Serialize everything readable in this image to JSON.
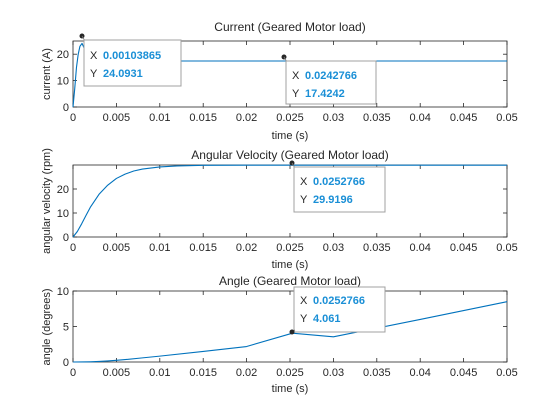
{
  "chart_data": [
    {
      "type": "line",
      "title": "Current (Geared Motor load)",
      "xlabel": "time (s)",
      "ylabel": "current (A)",
      "xlim": [
        0,
        0.05
      ],
      "ylim": [
        0,
        25
      ],
      "xticks": [
        "0",
        "0.005",
        "0.01",
        "0.015",
        "0.02",
        "0.025",
        "0.03",
        "0.035",
        "0.04",
        "0.045",
        "0.05"
      ],
      "yticks": [
        "0",
        "10",
        "20"
      ],
      "series": [
        {
          "color": "#0072bd",
          "x": [
            0,
            0.0002,
            0.0004,
            0.0006,
            0.0008,
            0.00103865,
            0.0013,
            0.0016,
            0.002,
            0.0025,
            0.003,
            0.004,
            0.006,
            0.01,
            0.0242766,
            0.05
          ],
          "y": [
            0,
            7,
            15,
            20,
            23,
            24.0931,
            22.2,
            20.6,
            19.2,
            18.2,
            17.8,
            17.5,
            17.43,
            17.4242,
            17.4242,
            17.4242
          ]
        }
      ],
      "datatips": [
        {
          "x_label": "X",
          "x_value": "0.00103865",
          "y_label": "Y",
          "y_value": "24.0931"
        },
        {
          "x_label": "X",
          "x_value": "0.0242766",
          "y_label": "Y",
          "y_value": "17.4242"
        }
      ]
    },
    {
      "type": "line",
      "title": "Angular Velocity (Geared Motor load)",
      "xlabel": "time (s)",
      "ylabel": "angular velocity (rpm)",
      "xlim": [
        0,
        0.05
      ],
      "ylim": [
        0,
        30
      ],
      "xticks": [
        "0",
        "0.005",
        "0.01",
        "0.015",
        "0.02",
        "0.025",
        "0.03",
        "0.035",
        "0.04",
        "0.045",
        "0.05"
      ],
      "yticks": [
        "0",
        "10",
        "20"
      ],
      "series": [
        {
          "color": "#0072bd",
          "x": [
            0,
            0.0005,
            0.001,
            0.0015,
            0.002,
            0.003,
            0.004,
            0.005,
            0.006,
            0.007,
            0.008,
            0.01,
            0.012,
            0.015,
            0.02,
            0.0252766,
            0.03,
            0.05
          ],
          "y": [
            0,
            2.3,
            5.5,
            9.0,
            12.4,
            17.8,
            21.6,
            24.4,
            26.2,
            27.5,
            28.3,
            29.2,
            29.6,
            29.85,
            29.91,
            29.9196,
            29.92,
            29.92
          ]
        }
      ],
      "datatips": [
        {
          "x_label": "X",
          "x_value": "0.0252766",
          "y_label": "Y",
          "y_value": "29.9196"
        }
      ]
    },
    {
      "type": "line",
      "title": "Angle (Geared Motor load)",
      "xlabel": "time (s)",
      "ylabel": "angle (degrees)",
      "xlim": [
        0,
        0.05
      ],
      "ylim": [
        0,
        10
      ],
      "xticks": [
        "0",
        "0.005",
        "0.01",
        "0.015",
        "0.02",
        "0.025",
        "0.03",
        "0.035",
        "0.04",
        "0.045",
        "0.05"
      ],
      "yticks": [
        "0",
        "5",
        "10"
      ],
      "series": [
        {
          "color": "#0072bd",
          "x": [
            0,
            0.001,
            0.002,
            0.003,
            0.004,
            0.005,
            0.006,
            0.008,
            0.01,
            0.015,
            0.02,
            0.0252766,
            0.03,
            0.04,
            0.05
          ],
          "y": [
            0,
            0.005,
            0.03,
            0.08,
            0.15,
            0.24,
            0.34,
            0.58,
            0.83,
            1.49,
            2.18,
            4.061,
            3.55,
            6.0,
            8.5
          ]
        }
      ],
      "datatips": [
        {
          "x_label": "X",
          "x_value": "0.0252766",
          "y_label": "Y",
          "y_value": "4.061"
        }
      ]
    }
  ]
}
